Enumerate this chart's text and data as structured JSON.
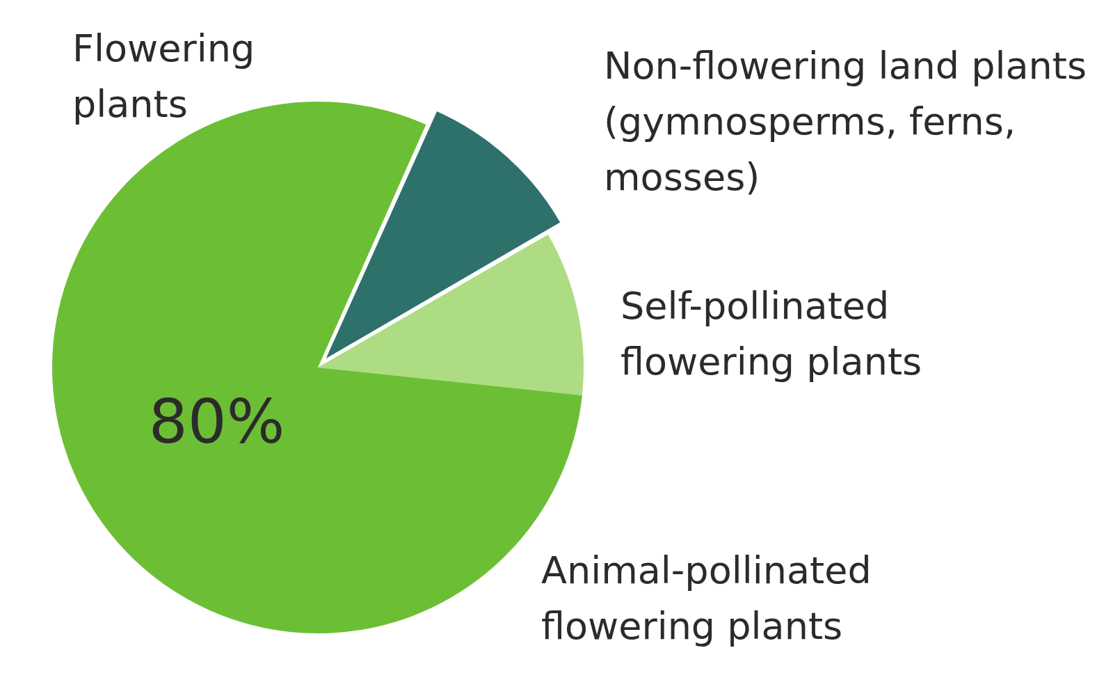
{
  "chart_data": {
    "type": "pie",
    "categories": [
      "Non-flowering land plants (gymnosperms, ferns, mosses)",
      "Self-pollinated flowering plants",
      "Animal-pollinated flowering plants"
    ],
    "values": [
      10,
      10,
      80
    ],
    "colors": [
      "#2e716b",
      "#addc82",
      "#6cbf35"
    ],
    "value_labels": [
      null,
      null,
      "80%"
    ],
    "annotations": [
      "Flowering plants"
    ],
    "legend": false
  }
}
